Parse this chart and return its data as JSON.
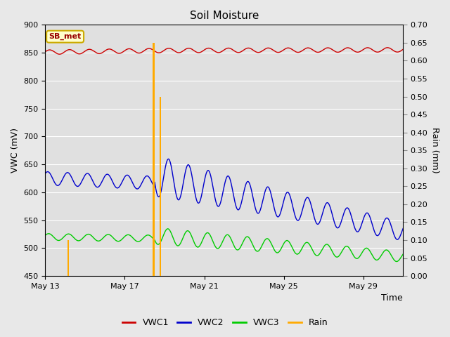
{
  "title": "Soil Moisture",
  "xlabel": "Time",
  "ylabel_left": "VWC (mV)",
  "ylabel_right": "Rain (mm)",
  "ylim_left": [
    450,
    900
  ],
  "ylim_right": [
    0.0,
    0.7
  ],
  "yticks_left": [
    450,
    500,
    550,
    600,
    650,
    700,
    750,
    800,
    850,
    900
  ],
  "yticks_right": [
    0.0,
    0.05,
    0.1,
    0.15,
    0.2,
    0.25,
    0.3,
    0.35,
    0.4,
    0.45,
    0.5,
    0.55,
    0.6,
    0.65,
    0.7
  ],
  "xtick_labels": [
    "May 13",
    "May 17",
    "May 21",
    "May 25",
    "May 29"
  ],
  "xtick_positions": [
    0,
    4,
    8,
    12,
    16
  ],
  "annotation_label": "SB_met",
  "annotation_color": "#990000",
  "annotation_bg": "#ffffcc",
  "annotation_border": "#ccaa00",
  "fig_bg_color": "#e8e8e8",
  "plot_bg_color": "#e0e0e0",
  "vwc1_color": "#cc0000",
  "vwc2_color": "#0000cc",
  "vwc3_color": "#00cc00",
  "rain_color": "#ffaa00",
  "grid_color": "#ffffff",
  "num_days": 18,
  "rain_events": [
    {
      "day": 1.15,
      "height": 0.1
    },
    {
      "day": 5.45,
      "height": 0.65
    },
    {
      "day": 5.8,
      "height": 0.5
    }
  ]
}
